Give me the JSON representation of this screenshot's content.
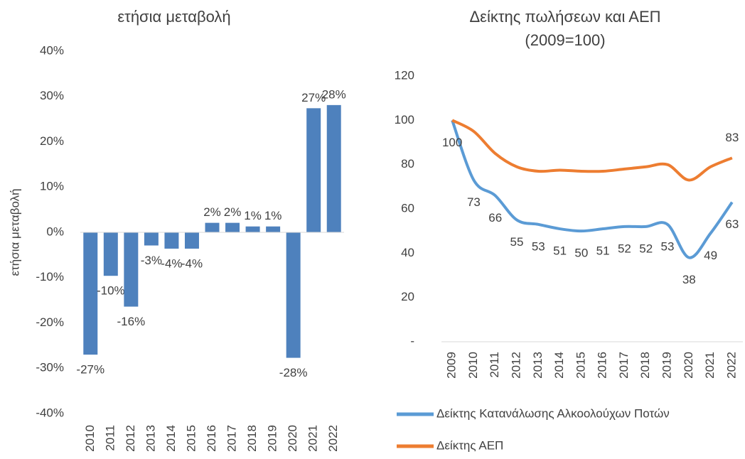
{
  "chart_data": [
    {
      "type": "bar",
      "title": "ετήσια μεταβολή",
      "y_label": "ετήσια μεταβολή",
      "categories": [
        "2010",
        "2011",
        "2012",
        "2013",
        "2014",
        "2015",
        "2016",
        "2017",
        "2018",
        "2019",
        "2020",
        "2021",
        "2022"
      ],
      "values": [
        -27,
        -9.6,
        -16.4,
        -2.9,
        -3.6,
        -3.6,
        2.1,
        2.1,
        1.3,
        1.3,
        -27.7,
        27.4,
        28.1
      ],
      "value_labels": [
        "-27%",
        "-10%",
        "-16%",
        "-3%",
        "-4%",
        "-4%",
        "2%",
        "2%",
        "1%",
        "1%",
        "-28%",
        "27%",
        "28%"
      ],
      "color": "#4e81bd",
      "ylim": [
        -40,
        40
      ],
      "yticks": [
        {
          "value": -40,
          "label": "-40%"
        },
        {
          "value": -30,
          "label": "-30%"
        },
        {
          "value": -20,
          "label": "-20%"
        },
        {
          "value": -10,
          "label": "-10%"
        },
        {
          "value": 0,
          "label": "0%"
        },
        {
          "value": 10,
          "label": "10%"
        },
        {
          "value": 20,
          "label": "20%"
        },
        {
          "value": 30,
          "label": "30%"
        },
        {
          "value": 40,
          "label": "40%"
        }
      ]
    },
    {
      "type": "line",
      "title": [
        "Δείκτης πωλήσεων και ΑΕΠ",
        "(2009=100)"
      ],
      "categories": [
        "2009",
        "2010",
        "2011",
        "2012",
        "2013",
        "2014",
        "2015",
        "2016",
        "2017",
        "2018",
        "2019",
        "2020",
        "2021",
        "2022"
      ],
      "series": [
        {
          "name": "Δείκτης Κατανάλωσης Αλκοολούχων Ποτών",
          "color": "#5b9bd5",
          "values": [
            100,
            73,
            66,
            55,
            53,
            51,
            50,
            51,
            52,
            52,
            53,
            38,
            49,
            63
          ]
        },
        {
          "name": "Δείκτης ΑΕΠ",
          "color": "#ed7d31",
          "values": [
            100,
            95,
            85,
            79,
            77,
            77.5,
            77,
            77,
            78,
            79,
            80,
            73,
            79,
            83
          ],
          "value_labels": [
            null,
            null,
            null,
            null,
            null,
            null,
            null,
            null,
            null,
            null,
            null,
            null,
            null,
            "83"
          ]
        }
      ],
      "ylim": [
        0,
        120
      ],
      "yticks": [
        {
          "value": 0,
          "label": "-"
        },
        20,
        40,
        60,
        80,
        100,
        120
      ]
    }
  ]
}
